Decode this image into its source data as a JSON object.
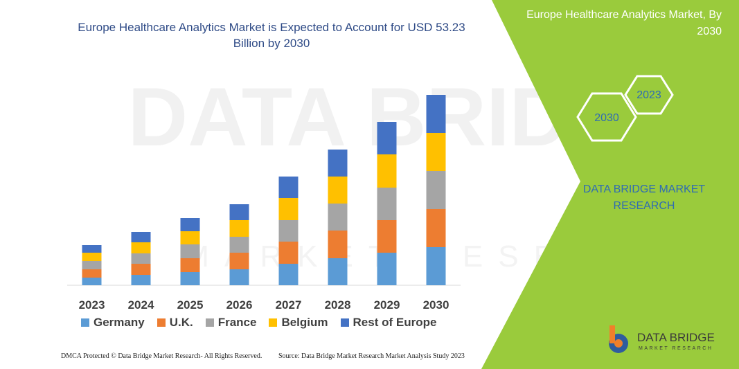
{
  "chart_data": {
    "type": "stacked_bar",
    "title": "Europe Healthcare Analytics Market is Expected to Account for USD 53.23 Billion by 2030",
    "categories": [
      "2023",
      "2024",
      "2025",
      "2026",
      "2027",
      "2028",
      "2029",
      "2030"
    ],
    "series": [
      {
        "name": "Germany",
        "color": "#5b9bd5",
        "values": [
          11,
          15,
          19,
          23,
          31,
          39,
          47,
          55
        ]
      },
      {
        "name": "U.K.",
        "color": "#ed7d31",
        "values": [
          12,
          16,
          20,
          24,
          32,
          40,
          47,
          55
        ]
      },
      {
        "name": "France",
        "color": "#a5a5a5",
        "values": [
          12,
          15,
          20,
          23,
          31,
          39,
          47,
          55
        ]
      },
      {
        "name": "Belgium",
        "color": "#ffc000",
        "values": [
          12,
          16,
          19,
          24,
          32,
          39,
          48,
          55
        ]
      },
      {
        "name": "Rest of Europe",
        "color": "#4472c4",
        "values": [
          11,
          15,
          19,
          23,
          31,
          39,
          47,
          55
        ]
      }
    ],
    "ylim": [
      0,
      300
    ]
  },
  "watermark": {
    "line1": "DATA BRIDGE",
    "line2": "MARKET RESEARCH"
  },
  "side_panel": {
    "heading": "Europe Healthcare Analytics Market, By 2030",
    "hex_labels": [
      "2023",
      "2030"
    ],
    "brand": "DATA BRIDGE MARKET RESEARCH"
  },
  "logo": {
    "name": "DATA BRIDGE",
    "tagline": "MARKET RESEARCH"
  },
  "footer": {
    "rights": "DMCA Protected © Data Bridge Market Research- All Rights Reserved.",
    "source": "Source: Data Bridge Market Research Market Analysis Study 2023"
  }
}
